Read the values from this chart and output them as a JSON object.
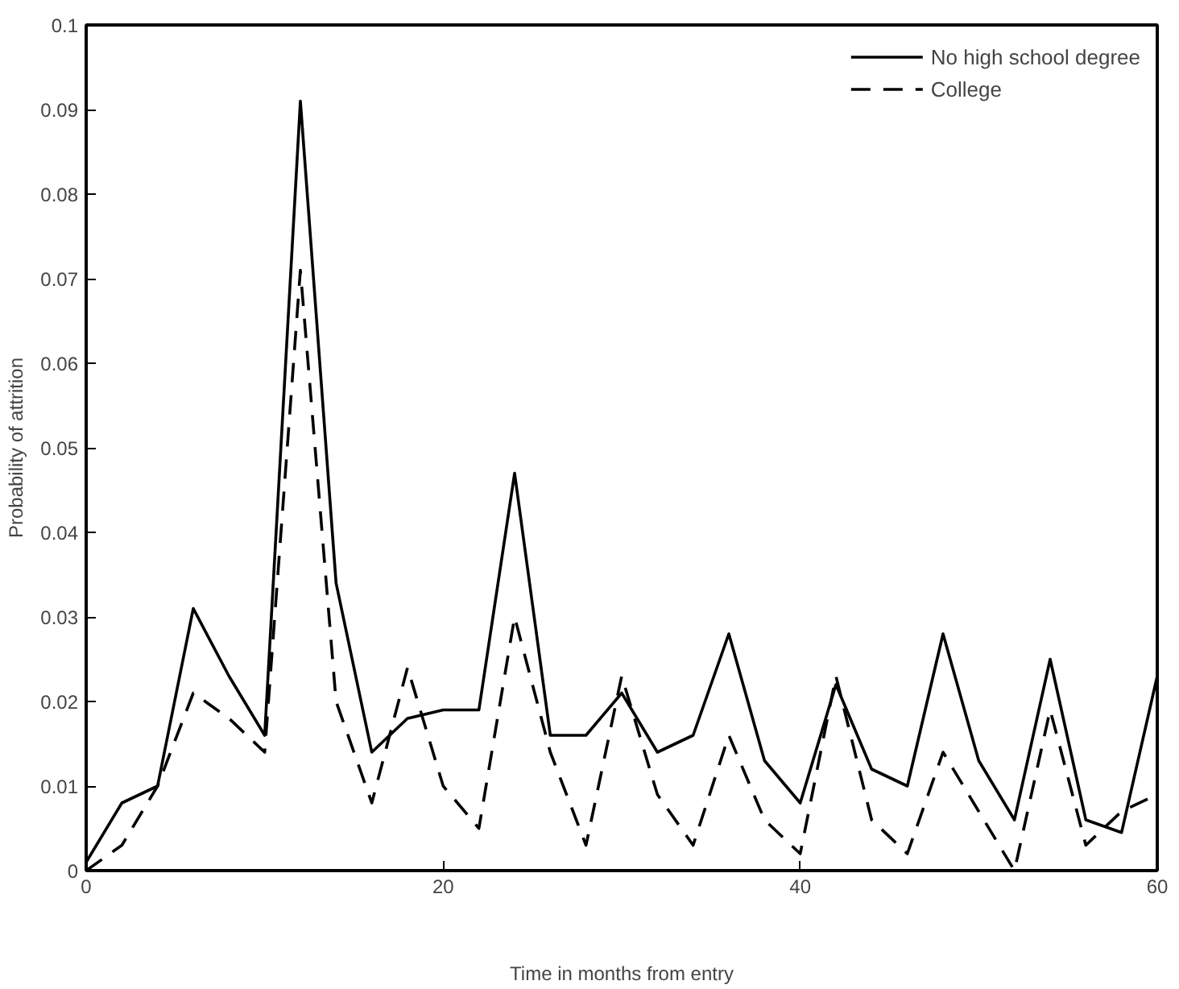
{
  "chart_data": {
    "type": "line",
    "xlabel": "Time in months from entry",
    "ylabel": "Probability of attrition",
    "x": [
      0,
      2,
      4,
      6,
      8,
      10,
      12,
      14,
      16,
      18,
      20,
      22,
      24,
      26,
      28,
      30,
      32,
      34,
      36,
      38,
      40,
      42,
      44,
      46,
      48,
      50,
      52,
      54,
      56,
      58,
      60
    ],
    "series": [
      {
        "name": "No high school degree",
        "color": "#000000",
        "line_style": "solid",
        "values": [
          0.001,
          0.008,
          0.01,
          0.031,
          0.023,
          0.016,
          0.091,
          0.034,
          0.014,
          0.018,
          0.019,
          0.019,
          0.047,
          0.016,
          0.016,
          0.021,
          0.014,
          0.016,
          0.028,
          0.013,
          0.008,
          0.022,
          0.012,
          0.01,
          0.028,
          0.013,
          0.006,
          0.025,
          0.006,
          0.0045,
          0.023
        ]
      },
      {
        "name": "College",
        "color": "#000000",
        "line_style": "dashed",
        "values": [
          0.0,
          0.003,
          0.01,
          0.021,
          0.018,
          0.014,
          0.071,
          0.02,
          0.008,
          0.024,
          0.01,
          0.005,
          0.03,
          0.014,
          0.003,
          0.023,
          0.009,
          0.003,
          0.016,
          0.006,
          0.002,
          0.023,
          0.006,
          0.002,
          0.014,
          0.007,
          0.0,
          0.019,
          0.003,
          0.007,
          0.009
        ]
      }
    ],
    "xlim": [
      0,
      60
    ],
    "xticks": [
      0,
      20,
      40,
      60
    ],
    "ylim": [
      0,
      0.1
    ],
    "yticks": [
      0,
      0.01,
      0.02,
      0.03,
      0.04,
      0.05,
      0.06,
      0.07,
      0.08,
      0.09,
      {
        "value": 0.1,
        "label": "0.1"
      }
    ],
    "grid": false,
    "legend": "top right"
  }
}
